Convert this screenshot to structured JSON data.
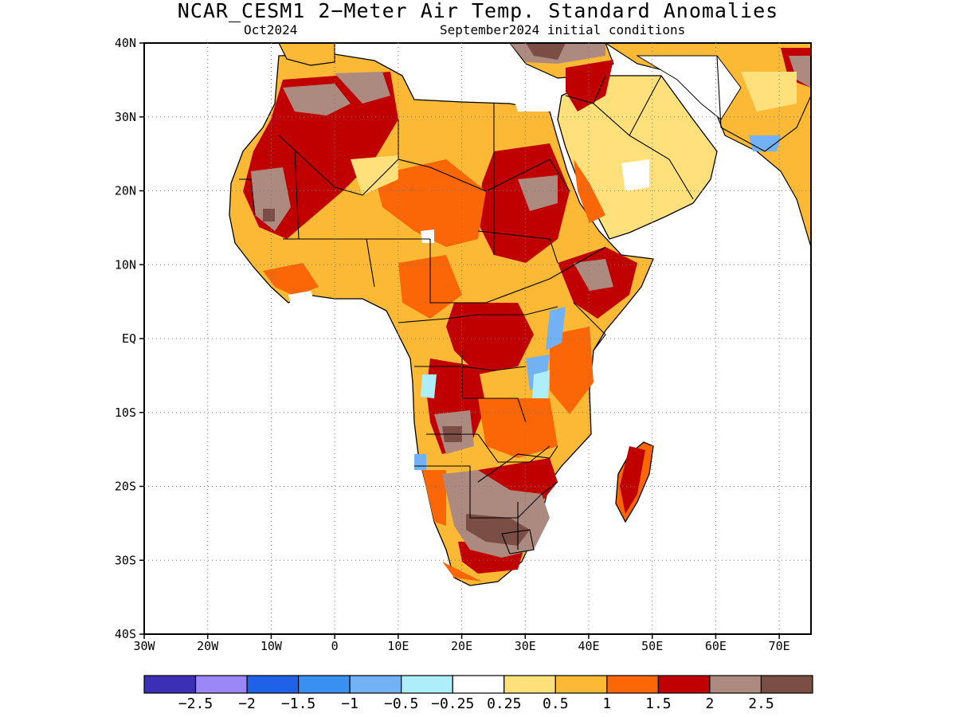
{
  "title": "NCAR_CESM1 2−Meter Air Temp. Standard Anomalies",
  "subtitle_left": "Oct2024",
  "subtitle_right": "September2024 initial conditions",
  "map": {
    "region": "Africa",
    "lat_range": [
      -40,
      40
    ],
    "lon_range": [
      -30,
      75
    ],
    "grid": "dotted",
    "lat_ticks": [
      "40N",
      "30N",
      "20N",
      "10N",
      "EQ",
      "10S",
      "20S",
      "30S",
      "40S"
    ],
    "lon_ticks": [
      "30W",
      "20W",
      "10W",
      "0",
      "10E",
      "20E",
      "30E",
      "40E",
      "50E",
      "60E",
      "70E"
    ]
  },
  "colorbar": {
    "colors": [
      "#3a2fb5",
      "#9b86f7",
      "#1f62e8",
      "#3a90f0",
      "#72b2f4",
      "#aeeefa",
      "#ffffff",
      "#ffe07a",
      "#fcb936",
      "#fb6707",
      "#c00000",
      "#ad8a80",
      "#7a4e45"
    ],
    "labels": [
      "−2.5",
      "−2",
      "−1.5",
      "−1",
      "−0.5",
      "−0.25",
      "0.25",
      "0.5",
      "1",
      "1.5",
      "2",
      "2.5"
    ]
  }
}
